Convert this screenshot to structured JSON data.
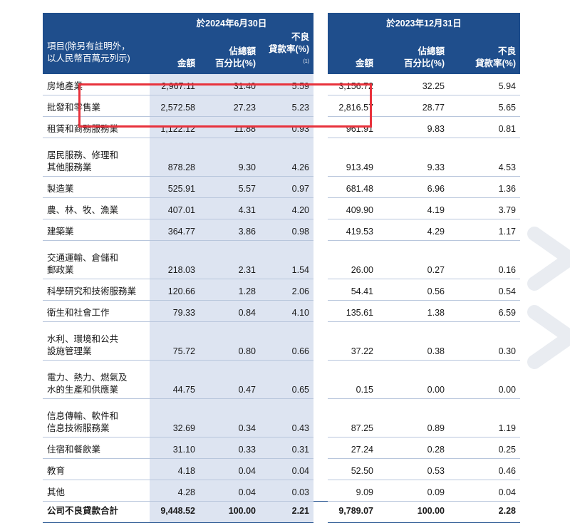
{
  "header": {
    "period_current": "於2024年6月30日",
    "period_prior": "於2023年12月31日",
    "item_label_line1": "項目(除另有註明外，",
    "item_label_line2": "以人民幣百萬元列示)",
    "col_amount": "金額",
    "col_pct_line1": "佔總額",
    "col_pct_line2": "百分比(%)",
    "col_npl_line1": "不良",
    "col_npl_line2": "貸款率(%)",
    "col_npl_note": "(1)"
  },
  "rows": [
    {
      "l1": "房地產業",
      "l2": "",
      "a1": "2,967.11",
      "p1": "31.40",
      "n1": "5.59",
      "a2": "3,156.72",
      "p2": "32.25",
      "n2": "5.94"
    },
    {
      "l1": "批發和零售業",
      "l2": "",
      "a1": "2,572.58",
      "p1": "27.23",
      "n1": "5.23",
      "a2": "2,816.57",
      "p2": "28.77",
      "n2": "5.65"
    },
    {
      "l1": "租賃和商務服務業",
      "l2": "",
      "a1": "1,122.12",
      "p1": "11.88",
      "n1": "0.93",
      "a2": "961.91",
      "p2": "9.83",
      "n2": "0.81"
    },
    {
      "l1": "居民服務、修理和",
      "l2": "其他服務業",
      "a1": "878.28",
      "p1": "9.30",
      "n1": "4.26",
      "a2": "913.49",
      "p2": "9.33",
      "n2": "4.53"
    },
    {
      "l1": "製造業",
      "l2": "",
      "a1": "525.91",
      "p1": "5.57",
      "n1": "0.97",
      "a2": "681.48",
      "p2": "6.96",
      "n2": "1.36"
    },
    {
      "l1": "農、林、牧、漁業",
      "l2": "",
      "a1": "407.01",
      "p1": "4.31",
      "n1": "4.20",
      "a2": "409.90",
      "p2": "4.19",
      "n2": "3.79"
    },
    {
      "l1": "建築業",
      "l2": "",
      "a1": "364.77",
      "p1": "3.86",
      "n1": "0.98",
      "a2": "419.53",
      "p2": "4.29",
      "n2": "1.17"
    },
    {
      "l1": "交通運輸、倉儲和",
      "l2": "郵政業",
      "a1": "218.03",
      "p1": "2.31",
      "n1": "1.54",
      "a2": "26.00",
      "p2": "0.27",
      "n2": "0.16"
    },
    {
      "l1": "科學研究和技術服務業",
      "l2": "",
      "a1": "120.66",
      "p1": "1.28",
      "n1": "2.06",
      "a2": "54.41",
      "p2": "0.56",
      "n2": "0.54"
    },
    {
      "l1": "衛生和社會工作",
      "l2": "",
      "a1": "79.33",
      "p1": "0.84",
      "n1": "4.10",
      "a2": "135.61",
      "p2": "1.38",
      "n2": "6.59"
    },
    {
      "l1": "水利、環境和公共",
      "l2": "設施管理業",
      "a1": "75.72",
      "p1": "0.80",
      "n1": "0.66",
      "a2": "37.22",
      "p2": "0.38",
      "n2": "0.30"
    },
    {
      "l1": "電力、熱力、燃氣及",
      "l2": "水的生產和供應業",
      "a1": "44.75",
      "p1": "0.47",
      "n1": "0.65",
      "a2": "0.15",
      "p2": "0.00",
      "n2": "0.00"
    },
    {
      "l1": "信息傳輸、軟件和",
      "l2": "信息技術服務業",
      "a1": "32.69",
      "p1": "0.34",
      "n1": "0.43",
      "a2": "87.25",
      "p2": "0.89",
      "n2": "1.19"
    },
    {
      "l1": "住宿和餐飲業",
      "l2": "",
      "a1": "31.10",
      "p1": "0.33",
      "n1": "0.31",
      "a2": "27.24",
      "p2": "0.28",
      "n2": "0.25"
    },
    {
      "l1": "教育",
      "l2": "",
      "a1": "4.18",
      "p1": "0.04",
      "n1": "0.04",
      "a2": "52.50",
      "p2": "0.53",
      "n2": "0.46"
    },
    {
      "l1": "其他",
      "l2": "",
      "a1": "4.28",
      "p1": "0.04",
      "n1": "0.03",
      "a2": "9.09",
      "p2": "0.09",
      "n2": "0.04"
    }
  ],
  "total": {
    "label": "公司不良貸款合計",
    "a1": "9,448.52",
    "p1": "100.00",
    "n1": "2.21",
    "a2": "9,789.07",
    "p2": "100.00",
    "n2": "2.28"
  },
  "colors": {
    "header_bg": "#1f4e8c",
    "highlight_bg": "#dde4f1",
    "annotation_box": "#e8323c",
    "rule": "#b8c6dc"
  }
}
